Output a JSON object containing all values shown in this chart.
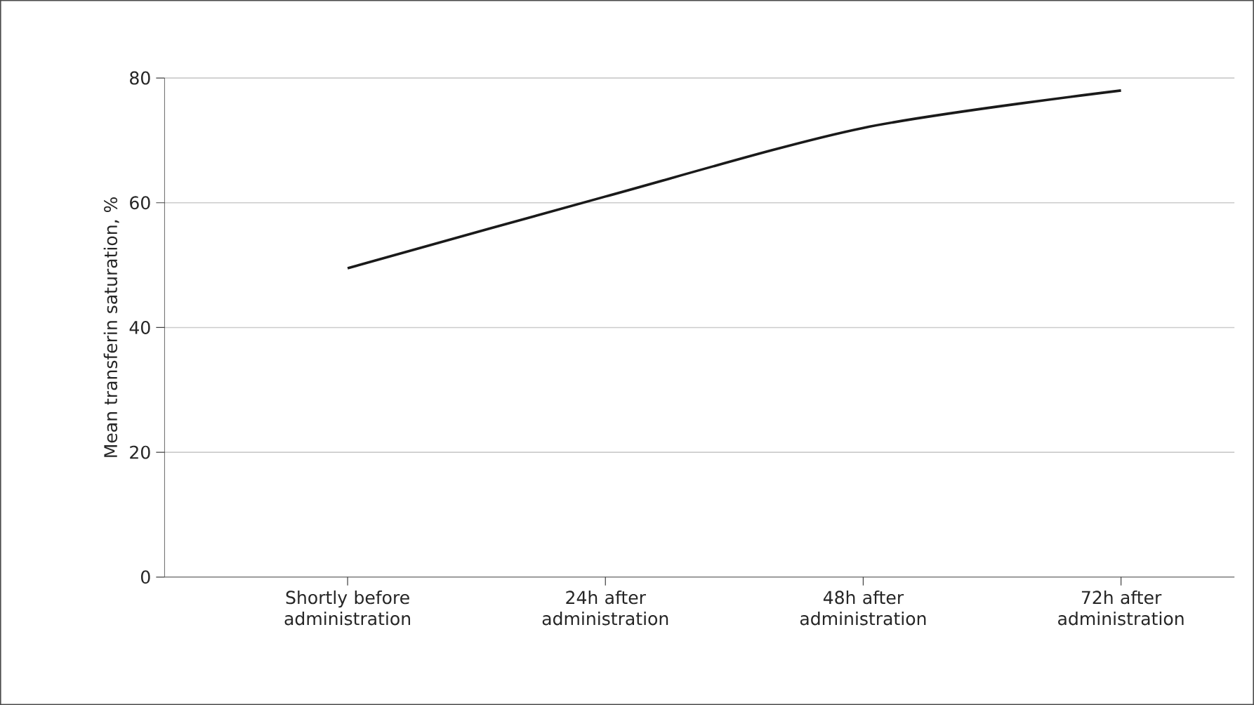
{
  "chart_data": {
    "type": "line",
    "ylabel": "Mean transferin saturation, %",
    "categories": [
      "Shortly before administration",
      "24h after administration",
      "48h after administration",
      "72h after administration"
    ],
    "series": [
      {
        "color": "#1a1a1a",
        "values": [
          49.5,
          61,
          72,
          78
        ]
      }
    ],
    "ylim": [
      0,
      80
    ],
    "yticks": [
      0,
      20,
      40,
      60,
      80
    ],
    "grid": "y",
    "marker": "none",
    "line_style": "solid"
  }
}
